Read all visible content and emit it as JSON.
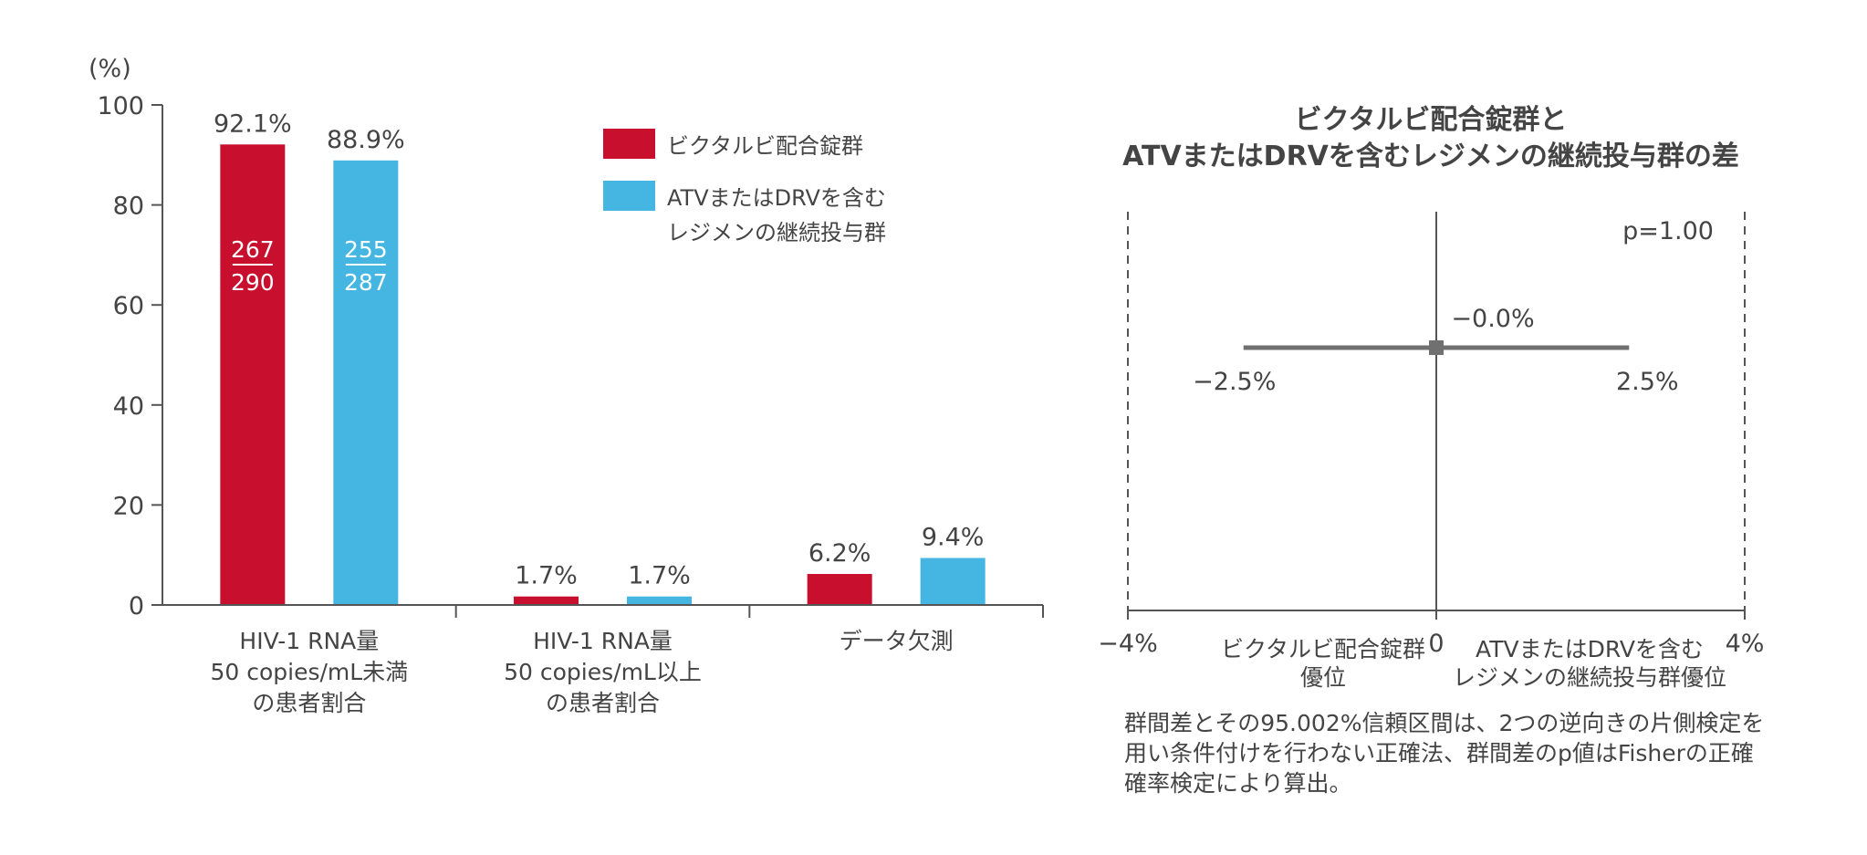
{
  "chart_data": [
    {
      "type": "bar",
      "ylabel": "(%)",
      "ylim": [
        0,
        100
      ],
      "yticks": [
        0,
        20,
        40,
        60,
        80,
        100
      ],
      "colors": [
        "#C8102E",
        "#45B6E2"
      ],
      "categories": [
        [
          "HIV-1 RNA量",
          "50 copies/mL未満",
          "の患者割合"
        ],
        [
          "HIV-1 RNA量",
          "50 copies/mL以上",
          "の患者割合"
        ],
        [
          "データ欠測"
        ]
      ],
      "series": [
        {
          "name": "ビクタルビ配合錠群",
          "legend_lines": [
            "ビクタルビ配合錠群"
          ],
          "values": [
            92.1,
            1.7,
            6.2
          ],
          "labels": [
            "92.1%",
            "1.7%",
            "6.2%"
          ],
          "fraction": {
            "numerator": "267",
            "denominator": "290"
          }
        },
        {
          "name": "ATVまたはDRVを含むレジメンの継続投与群",
          "legend_lines": [
            "ATVまたはDRVを含む",
            "レジメンの継続投与群"
          ],
          "values": [
            88.9,
            1.7,
            9.4
          ],
          "labels": [
            "88.9%",
            "1.7%",
            "9.4%"
          ],
          "fraction": {
            "numerator": "255",
            "denominator": "287"
          }
        }
      ]
    },
    {
      "type": "forest",
      "title": [
        "ビクタルビ配合錠群と",
        "ATVまたはDRVを含むレジメンの継続投与群の差"
      ],
      "xlim": [
        -4,
        4
      ],
      "xticks": [
        "−4%",
        "0",
        "4%"
      ],
      "point": -0.0,
      "ci": [
        -2.5,
        2.5
      ],
      "point_label": "−0.0%",
      "ci_labels": [
        "−2.5%",
        "2.5%"
      ],
      "p_value": "p=1.00",
      "left_label": [
        "ビクタルビ配合錠群",
        "優位"
      ],
      "right_label": [
        "ATVまたはDRVを含む",
        "レジメンの継続投与群優位"
      ]
    }
  ],
  "footnote": [
    "群間差とその95.002%信頼区間は、2つの逆向きの片側検定を",
    "用い条件付けを行わない正確法、群間差のp値はFisherの正確",
    "確率検定により算出。"
  ]
}
